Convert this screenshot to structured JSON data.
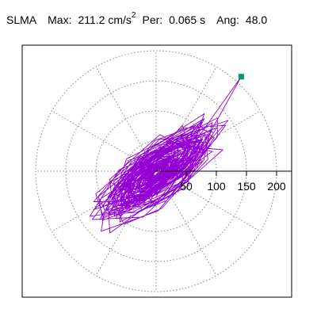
{
  "header": {
    "station": "SLMA",
    "max_label": "Max:",
    "max_value": "211.2",
    "max_unit": "cm/s",
    "max_unit_power": "2",
    "per_label": "Per:",
    "per_value": "0.065 s",
    "ang_label": "Ang:",
    "ang_value": "48.0"
  },
  "chart_data": {
    "type": "line",
    "coordinate_system": "polar",
    "radial_ticks": [
      "50",
      "100",
      "150",
      "200"
    ],
    "radial_tick_values": [
      50,
      100,
      150,
      200
    ],
    "radial_range": [
      0,
      230
    ],
    "angular_grid_step_deg": 30,
    "grid": true,
    "series_color": "#9400d3",
    "marker_color": "#009878",
    "peak": {
      "r": 211.2,
      "angle_deg": 48.0
    }
  }
}
